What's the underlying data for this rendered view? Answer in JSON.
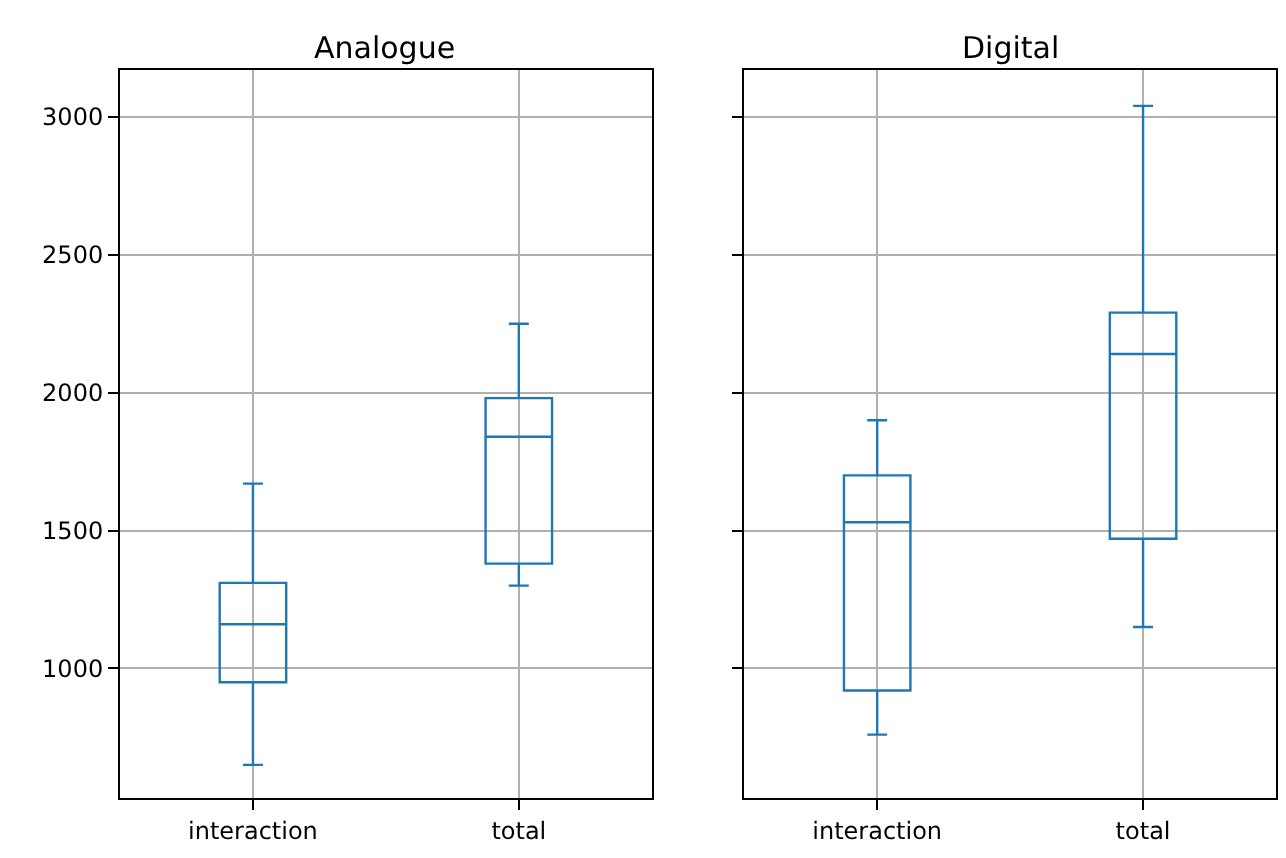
{
  "chart_data": [
    {
      "type": "box",
      "title": "Analogue",
      "categories": [
        "interaction",
        "total"
      ],
      "color": "#1f77b4",
      "ylim": [
        530,
        3170
      ],
      "yticks": [
        1000,
        1500,
        2000,
        2500,
        3000
      ],
      "grid": true,
      "boxes": [
        {
          "low": 650,
          "q1": 950,
          "median": 1160,
          "q3": 1310,
          "high": 1670
        },
        {
          "low": 1300,
          "q1": 1380,
          "median": 1840,
          "q3": 1980,
          "high": 2250
        }
      ]
    },
    {
      "type": "box",
      "title": "Digital",
      "categories": [
        "interaction",
        "total"
      ],
      "color": "#1f77b4",
      "ylim": [
        530,
        3170
      ],
      "yticks": [
        1000,
        1500,
        2000,
        2500,
        3000
      ],
      "grid": true,
      "tick_labels": "x",
      "boxes": [
        {
          "low": 760,
          "q1": 920,
          "median": 1530,
          "q3": 1700,
          "high": 1900
        },
        {
          "low": 1150,
          "q1": 1470,
          "median": 2140,
          "q3": 2290,
          "high": 3040
        }
      ]
    }
  ]
}
